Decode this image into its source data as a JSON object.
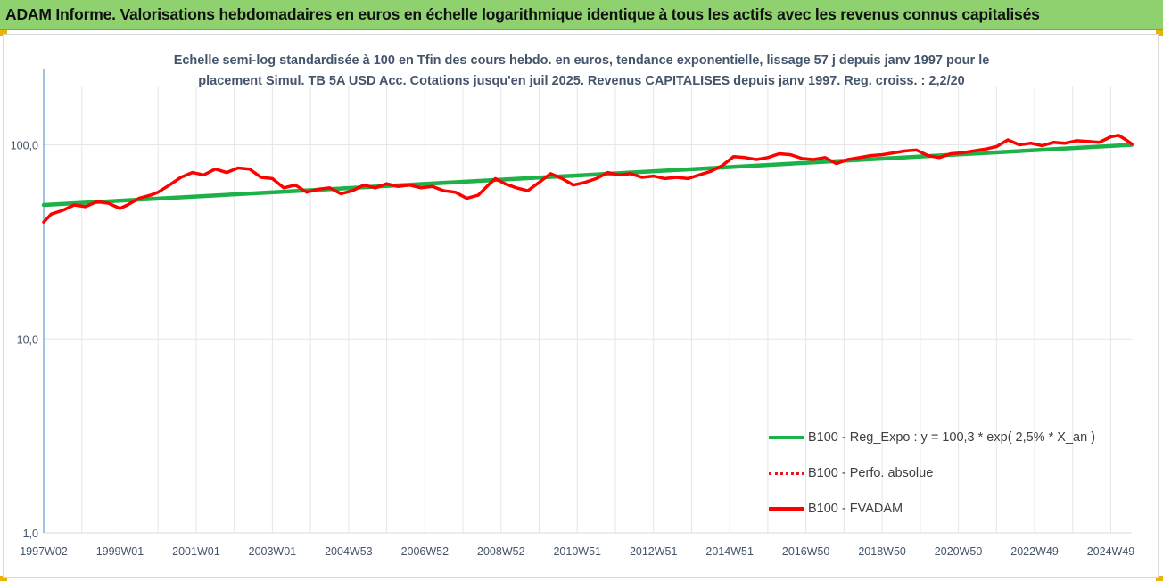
{
  "window": {
    "title": "ADAM Informe. Valorisations hebdomadaires en euros en échelle logarithmique identique à tous les actifs avec les revenus connus capitalisés"
  },
  "colors": {
    "banner": "#8fd16f",
    "regression": "#1db149",
    "performance": "#e8141b",
    "fvadam": "#ff0000",
    "axis_text": "#44546a"
  },
  "chart_data": {
    "type": "line",
    "title": "Echelle semi-log standardisée à 100 en Tfin des cours hebdo. en euros, tendance exponentielle, lissage 57 j depuis janv 1997 pour le placement Simul. TB 5A USD Acc. Cotations jusqu'en juil 2025.  Revenus CAPITALISES depuis janv 1997. Reg. croiss. : 2,2/20",
    "title_lines": [
      "Echelle semi-log standardisée à 100 en Tfin des cours hebdo. en euros, tendance exponentielle, lissage 57 j depuis janv 1997 pour le",
      "placement Simul. TB 5A USD Acc. Cotations jusqu'en juil 2025.  Revenus CAPITALISES depuis janv 1997. Reg. croiss. : 2,2/20"
    ],
    "y_scale": "log",
    "ylim": [
      1,
      200
    ],
    "y_ticks": [
      {
        "value": 1,
        "label": "1,0"
      },
      {
        "value": 10,
        "label": "10,0"
      },
      {
        "value": 100,
        "label": "100,0"
      }
    ],
    "xlim": [
      1997.0,
      2025.55
    ],
    "x_ticks": [
      {
        "x": 1997.0,
        "label": "1997W02"
      },
      {
        "x": 1999.0,
        "label": "1999W01"
      },
      {
        "x": 2001.0,
        "label": "2001W01"
      },
      {
        "x": 2003.0,
        "label": "2003W01"
      },
      {
        "x": 2005.0,
        "label": "2004W53"
      },
      {
        "x": 2007.0,
        "label": "2006W52"
      },
      {
        "x": 2009.0,
        "label": "2008W52"
      },
      {
        "x": 2011.0,
        "label": "2010W51"
      },
      {
        "x": 2013.0,
        "label": "2012W51"
      },
      {
        "x": 2015.0,
        "label": "2014W51"
      },
      {
        "x": 2017.0,
        "label": "2016W50"
      },
      {
        "x": 2019.0,
        "label": "2018W50"
      },
      {
        "x": 2021.0,
        "label": "2020W50"
      },
      {
        "x": 2023.0,
        "label": "2022W49"
      },
      {
        "x": 2025.0,
        "label": "2024W49"
      }
    ],
    "grid": "vertical",
    "legend_position": "bottom-right",
    "series": [
      {
        "name": "B100 - Reg_Expo : y = 100,3 * exp( 2,5% *  X_an )",
        "style": "solid-thick",
        "x": [
          1997.0,
          2025.55
        ],
        "y": [
          49,
          100
        ]
      },
      {
        "name": "B100 - Perfo. absolue",
        "style": "dotted",
        "x": [],
        "y": []
      },
      {
        "name": "B100 - FVADAM",
        "style": "solid-thick",
        "x": [
          1997.0,
          1997.2,
          1997.5,
          1997.8,
          1998.1,
          1998.4,
          1998.7,
          1999.0,
          1999.2,
          1999.5,
          1999.8,
          2000.0,
          2000.3,
          2000.6,
          2000.9,
          2001.2,
          2001.5,
          2001.8,
          2002.1,
          2002.4,
          2002.7,
          2003.0,
          2003.3,
          2003.6,
          2003.9,
          2004.2,
          2004.5,
          2004.8,
          2005.1,
          2005.4,
          2005.7,
          2006.0,
          2006.3,
          2006.6,
          2006.9,
          2007.2,
          2007.5,
          2007.8,
          2008.1,
          2008.4,
          2008.7,
          2008.85,
          2009.1,
          2009.4,
          2009.7,
          2010.0,
          2010.3,
          2010.6,
          2010.9,
          2011.2,
          2011.5,
          2011.8,
          2012.1,
          2012.4,
          2012.7,
          2013.0,
          2013.3,
          2013.6,
          2013.9,
          2014.2,
          2014.5,
          2014.8,
          2015.1,
          2015.4,
          2015.7,
          2016.0,
          2016.3,
          2016.6,
          2016.9,
          2017.2,
          2017.5,
          2017.8,
          2018.1,
          2018.4,
          2018.7,
          2019.0,
          2019.3,
          2019.6,
          2019.9,
          2020.2,
          2020.5,
          2020.8,
          2021.1,
          2021.4,
          2021.7,
          2022.0,
          2022.3,
          2022.6,
          2022.9,
          2023.2,
          2023.5,
          2023.8,
          2024.1,
          2024.4,
          2024.7,
          2025.0,
          2025.2,
          2025.4,
          2025.55
        ],
        "y": [
          40,
          44,
          46,
          49,
          48,
          51,
          50,
          47,
          49,
          53,
          55,
          57,
          62,
          68,
          72,
          70,
          75,
          72,
          76,
          75,
          68,
          67,
          60,
          62,
          57,
          59,
          60,
          56,
          58,
          62,
          60,
          63,
          61,
          62,
          60,
          61,
          58,
          57,
          53,
          55,
          63,
          67,
          63,
          60,
          58,
          64,
          71,
          67,
          62,
          64,
          67,
          72,
          70,
          71,
          68,
          69,
          67,
          68,
          67,
          70,
          73,
          78,
          87,
          86,
          84,
          86,
          90,
          89,
          85,
          84,
          86,
          80,
          84,
          86,
          88,
          89,
          91,
          93,
          94,
          88,
          86,
          90,
          91,
          93,
          95,
          98,
          106,
          100,
          102,
          99,
          103,
          102,
          105,
          104,
          103,
          110,
          112,
          106,
          101
        ]
      }
    ]
  }
}
